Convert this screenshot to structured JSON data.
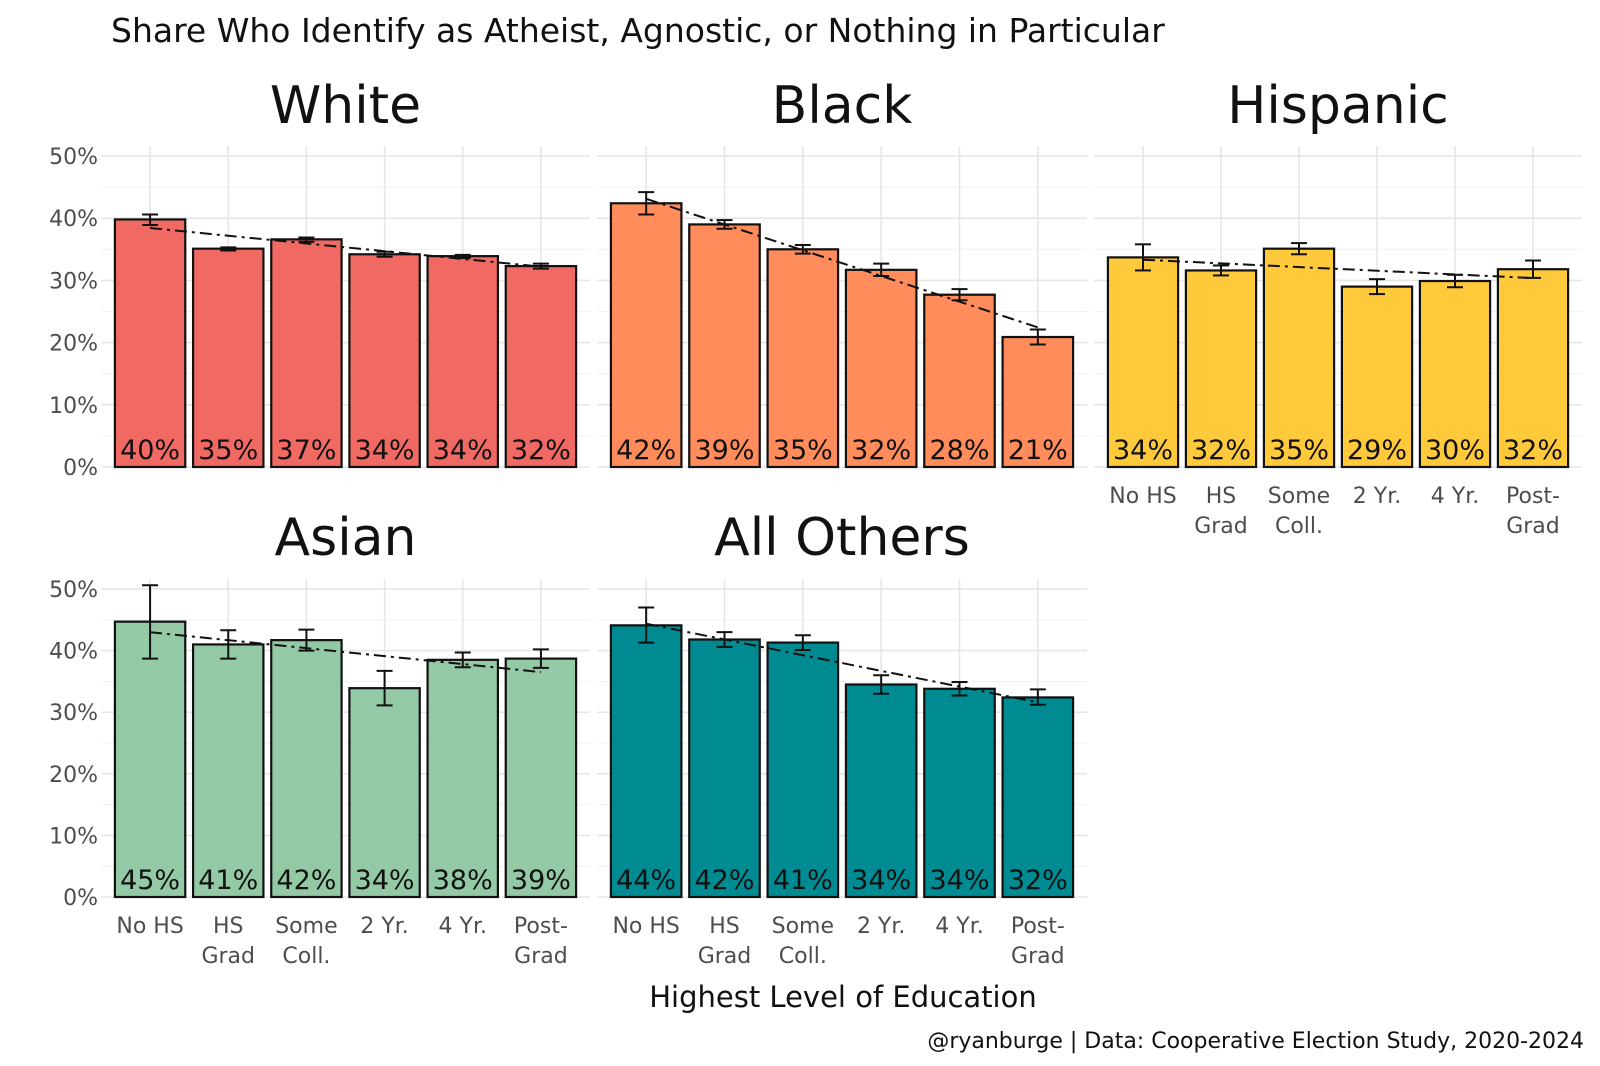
{
  "chart_data": {
    "type": "bar",
    "title": "Share Who Identify as Atheist, Agnostic, or Nothing in Particular",
    "xlabel": "Highest Level of Education",
    "ylabel": "",
    "caption": "@ryanburge | Data: Cooperative Election Study, 2020-2024",
    "ylim": [
      0,
      50
    ],
    "yticks": [
      "0%",
      "10%",
      "20%",
      "30%",
      "40%",
      "50%"
    ],
    "categories": [
      "No HS",
      "HS Grad",
      "Some Coll.",
      "2 Yr.",
      "4 Yr.",
      "Post-Grad"
    ],
    "category_lines": [
      [
        "No HS"
      ],
      [
        "HS",
        "Grad"
      ],
      [
        "Some",
        "Coll."
      ],
      [
        "2 Yr."
      ],
      [
        "4 Yr."
      ],
      [
        "Post-",
        "Grad"
      ]
    ],
    "grid": true,
    "trend_line": "dash-dot linear fit per panel",
    "panels": [
      {
        "name": "White",
        "color": "#f06a63",
        "values": [
          39.8,
          35.1,
          36.6,
          34.2,
          33.9,
          32.3
        ],
        "labels": [
          "40%",
          "35%",
          "37%",
          "34%",
          "34%",
          "32%"
        ],
        "error_low": [
          38.9,
          34.8,
          36.2,
          33.8,
          33.6,
          31.9
        ],
        "error_high": [
          40.6,
          35.3,
          36.9,
          34.6,
          34.1,
          32.7
        ]
      },
      {
        "name": "Black",
        "color": "#ff8c5a",
        "values": [
          42.4,
          39.0,
          35.0,
          31.7,
          27.7,
          20.9
        ],
        "labels": [
          "42%",
          "39%",
          "35%",
          "32%",
          "28%",
          "21%"
        ],
        "error_low": [
          40.6,
          38.3,
          34.3,
          30.7,
          26.8,
          19.7
        ],
        "error_high": [
          44.2,
          39.7,
          35.7,
          32.7,
          28.6,
          22.1
        ]
      },
      {
        "name": "Hispanic",
        "color": "#ffc93c",
        "values": [
          33.7,
          31.6,
          35.1,
          29.0,
          29.9,
          31.8
        ],
        "labels": [
          "34%",
          "32%",
          "35%",
          "29%",
          "30%",
          "32%"
        ],
        "error_low": [
          31.6,
          30.8,
          34.2,
          27.8,
          28.9,
          30.4
        ],
        "error_high": [
          35.8,
          32.4,
          36.0,
          30.2,
          30.9,
          33.2
        ]
      },
      {
        "name": "Asian",
        "color": "#94c9a5",
        "values": [
          44.7,
          41.0,
          41.7,
          33.9,
          38.5,
          38.7
        ],
        "labels": [
          "45%",
          "41%",
          "42%",
          "34%",
          "38%",
          "39%"
        ],
        "error_low": [
          38.7,
          38.7,
          40.0,
          31.1,
          37.3,
          37.2
        ],
        "error_high": [
          50.6,
          43.3,
          43.4,
          36.7,
          39.7,
          40.2
        ]
      },
      {
        "name": "All Others",
        "color": "#008b92",
        "values": [
          44.1,
          41.8,
          41.3,
          34.5,
          33.8,
          32.4
        ],
        "labels": [
          "44%",
          "42%",
          "41%",
          "34%",
          "34%",
          "32%"
        ],
        "error_low": [
          41.3,
          40.6,
          40.1,
          33.0,
          32.7,
          31.2
        ],
        "error_high": [
          47.0,
          43.0,
          42.5,
          36.0,
          34.9,
          33.7
        ]
      }
    ]
  }
}
